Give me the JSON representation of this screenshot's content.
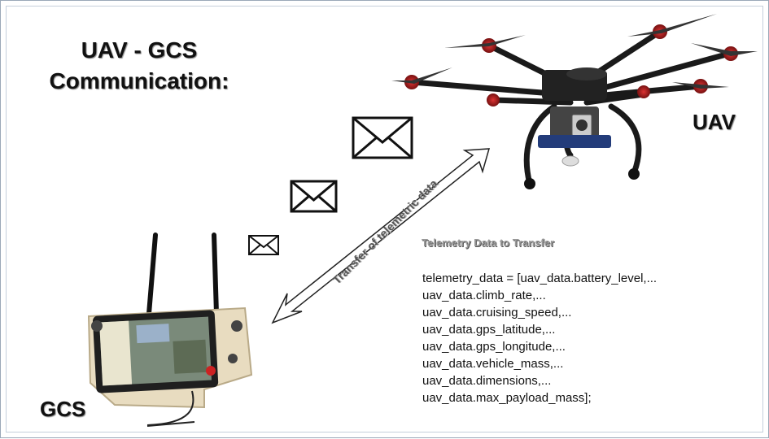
{
  "title": {
    "line1": "UAV - GCS",
    "line2": "Communication:"
  },
  "labels": {
    "uav": "UAV",
    "gcs": "GCS"
  },
  "arrow": {
    "label": "Transfer of telemetric data"
  },
  "telemetry": {
    "heading": "Telemetry Data to Transfer",
    "lines": [
      "telemetry_data = [uav_data.battery_level,...",
      "uav_data.climb_rate,...",
      "uav_data.cruising_speed,...",
      "uav_data.gps_latitude,...",
      "uav_data.gps_longitude,...",
      "uav_data.vehicle_mass,...",
      "uav_data.dimensions,...",
      "uav_data.max_payload_mass];"
    ]
  },
  "icons": {
    "envelope": "envelope-icon",
    "drone": "drone-image",
    "ground_station": "ground-control-station-image"
  }
}
